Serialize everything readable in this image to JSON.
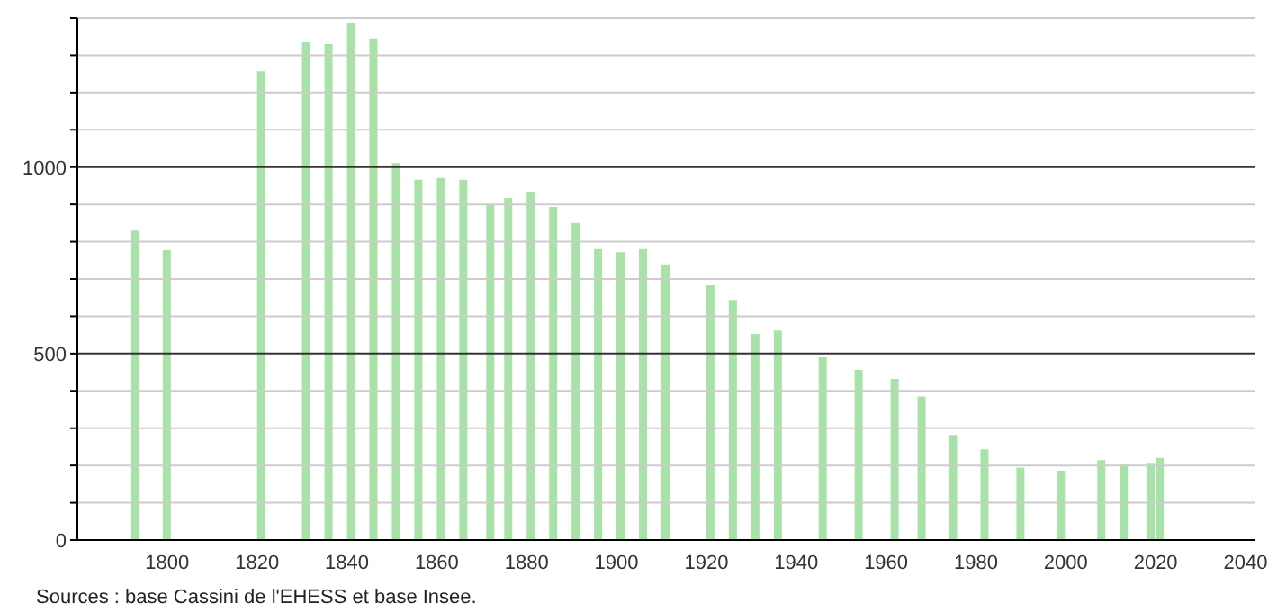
{
  "chart_data": {
    "type": "bar",
    "x": [
      1793,
      1800,
      1821,
      1831,
      1836,
      1841,
      1846,
      1851,
      1856,
      1861,
      1866,
      1872,
      1876,
      1881,
      1886,
      1891,
      1896,
      1901,
      1906,
      1911,
      1921,
      1926,
      1931,
      1936,
      1946,
      1954,
      1962,
      1968,
      1975,
      1982,
      1990,
      1999,
      2008,
      2013,
      2019,
      2021
    ],
    "values": [
      830,
      777,
      1257,
      1335,
      1330,
      1388,
      1345,
      1011,
      966,
      971,
      966,
      901,
      917,
      934,
      893,
      850,
      780,
      772,
      780,
      739,
      683,
      644,
      553,
      562,
      490,
      456,
      432,
      385,
      282,
      243,
      194,
      186,
      214,
      202,
      207,
      220
    ],
    "color": "#a8e2a8",
    "xlim": [
      1780,
      2042
    ],
    "xticks": [
      1800,
      1820,
      1840,
      1860,
      1880,
      1900,
      1920,
      1940,
      1960,
      1980,
      2000,
      2020,
      2040
    ],
    "ylim": [
      0,
      1400
    ],
    "yticks": [
      0,
      {
        "value": 100,
        "label": null
      },
      {
        "value": 200,
        "label": null
      },
      {
        "value": 300,
        "label": null
      },
      {
        "value": 400,
        "label": null
      },
      500,
      {
        "value": 600,
        "label": null
      },
      {
        "value": 700,
        "label": null
      },
      {
        "value": 800,
        "label": null
      },
      {
        "value": 900,
        "label": null
      },
      1000,
      {
        "value": 1100,
        "label": null
      },
      {
        "value": 1200,
        "label": null
      },
      {
        "value": 1300,
        "label": null
      },
      {
        "value": 1400,
        "label": null
      }
    ],
    "grid": "y",
    "annotations": [
      "Sources : base Cassini de l'EHESS et base Insee."
    ]
  }
}
